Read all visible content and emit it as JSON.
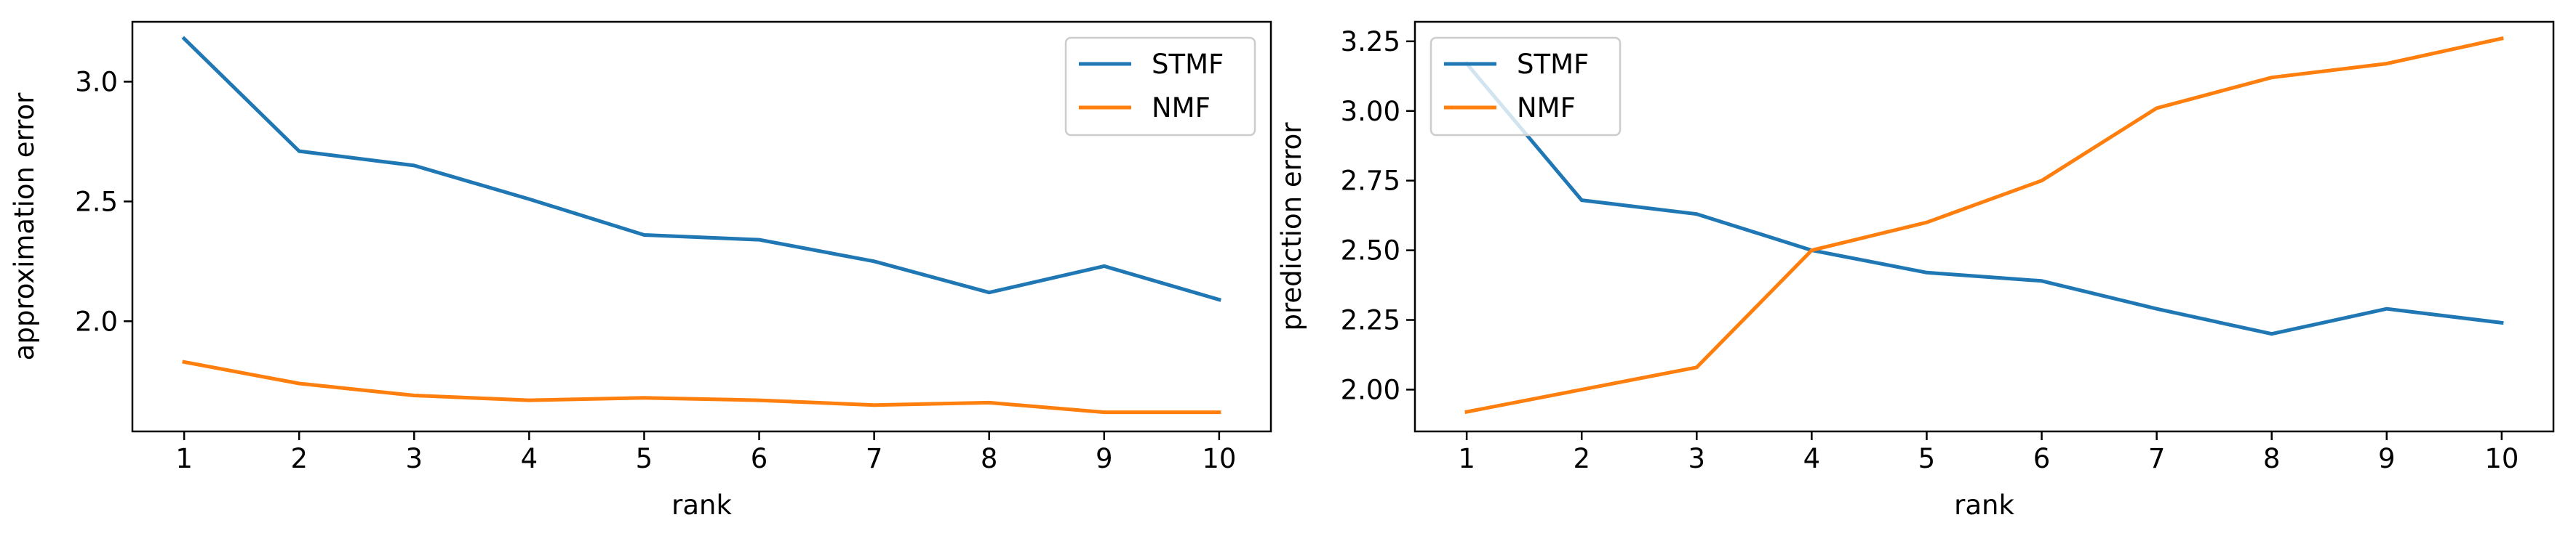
{
  "colors": {
    "series_1": "#1f77b4",
    "series_2": "#ff7f0e",
    "axes": "#000000",
    "legend_border": "#cccccc"
  },
  "chart_data": [
    {
      "type": "line",
      "xlabel": "rank",
      "ylabel": "approximation error",
      "x": [
        1,
        2,
        3,
        4,
        5,
        6,
        7,
        8,
        9,
        10
      ],
      "xticks": [
        1,
        2,
        3,
        4,
        5,
        6,
        7,
        8,
        9,
        10
      ],
      "xlim": [
        0.55,
        10.45
      ],
      "yticks": [
        2.0,
        2.5,
        3.0
      ],
      "ytick_labels": [
        "2.0",
        "2.5",
        "3.0"
      ],
      "ylim": [
        1.54,
        3.25
      ],
      "grid": false,
      "legend": "upper right",
      "series": [
        {
          "name": "STMF",
          "color": "#1f77b4",
          "values": [
            3.18,
            2.71,
            2.65,
            2.51,
            2.36,
            2.34,
            2.25,
            2.12,
            2.23,
            2.09
          ]
        },
        {
          "name": "NMF",
          "color": "#ff7f0e",
          "values": [
            1.83,
            1.74,
            1.69,
            1.67,
            1.68,
            1.67,
            1.65,
            1.66,
            1.62,
            1.62
          ]
        }
      ]
    },
    {
      "type": "line",
      "xlabel": "rank",
      "ylabel": "prediction error",
      "x": [
        1,
        2,
        3,
        4,
        5,
        6,
        7,
        8,
        9,
        10
      ],
      "xticks": [
        1,
        2,
        3,
        4,
        5,
        6,
        7,
        8,
        9,
        10
      ],
      "xlim": [
        0.55,
        10.45
      ],
      "yticks": [
        2.0,
        2.25,
        2.5,
        2.75,
        3.0,
        3.25
      ],
      "ytick_labels": [
        "2.00",
        "2.25",
        "2.50",
        "2.75",
        "3.00",
        "3.25"
      ],
      "ylim": [
        1.85,
        3.32
      ],
      "grid": false,
      "legend": "upper left",
      "series": [
        {
          "name": "STMF",
          "color": "#1f77b4",
          "values": [
            3.17,
            2.68,
            2.63,
            2.5,
            2.42,
            2.39,
            2.29,
            2.2,
            2.29,
            2.24
          ]
        },
        {
          "name": "NMF",
          "color": "#ff7f0e",
          "values": [
            1.92,
            2.0,
            2.08,
            2.5,
            2.6,
            2.75,
            3.01,
            3.12,
            3.17,
            3.26
          ]
        }
      ]
    }
  ]
}
